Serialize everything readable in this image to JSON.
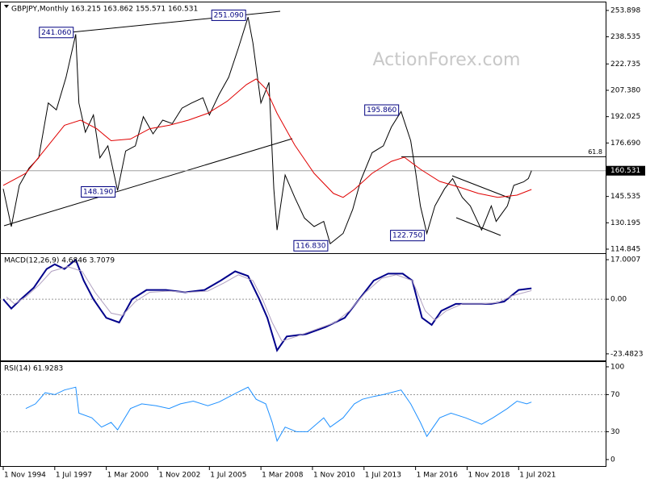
{
  "chart_data": [
    {
      "type": "line",
      "title": "GBPJPY,Monthly  163.215 163.862 155.571 160.531",
      "watermark": "ActionForex.com",
      "xlim": [
        "1994-09",
        "2026-01"
      ],
      "ylim": [
        112.5,
        258.1
      ],
      "yticks": [
        253.898,
        238.535,
        222.735,
        {
          "value": 207.38,
          "label": "207.380"
        },
        192.025,
        {
          "value": 176.69,
          "label": "176.690"
        },
        145.535,
        130.195,
        114.845
      ],
      "last_price": 160.531,
      "fib": {
        "label": "61.8",
        "value": 168.7
      },
      "annotations": [
        {
          "x": "1998-08",
          "value": 241.06,
          "label": "241.060"
        },
        {
          "x": "2007-07",
          "value": 251.09,
          "label": "251.090"
        },
        {
          "x": "2000-10",
          "value": 148.19,
          "label": "148.190"
        },
        {
          "x": "2011-10",
          "value": 116.83,
          "label": "116.830"
        },
        {
          "x": "2015-06",
          "value": 195.86,
          "label": "195.860"
        },
        {
          "x": "2016-10",
          "value": 122.75,
          "label": "122.750"
        }
      ],
      "series": [
        {
          "color": "#000000",
          "x": [
            "1994-11",
            "1995-04",
            "1995-09",
            "1996-03",
            "1996-09",
            "1997-03",
            "1997-08",
            "1998-02",
            "1998-08",
            "1998-10",
            "1999-02",
            "1999-07",
            "1999-11",
            "2000-04",
            "2000-10",
            "2001-03",
            "2001-09",
            "2002-02",
            "2002-08",
            "2003-02",
            "2003-08",
            "2004-02",
            "2004-08",
            "2005-03",
            "2005-07",
            "2006-01",
            "2006-07",
            "2007-01",
            "2007-07",
            "2007-10",
            "2008-03",
            "2008-08",
            "2008-11",
            "2009-01",
            "2009-06",
            "2009-12",
            "2010-06",
            "2010-12",
            "2011-06",
            "2011-10",
            "2012-06",
            "2012-12",
            "2013-05",
            "2013-12",
            "2014-07",
            "2014-12",
            "2015-06",
            "2015-12",
            "2016-03",
            "2016-06",
            "2016-10",
            "2017-03",
            "2017-09",
            "2018-02",
            "2018-08",
            "2019-01",
            "2019-08",
            "2020-02",
            "2020-05",
            "2020-12",
            "2021-04",
            "2021-10",
            "2022-01",
            "2022-03"
          ],
          "values": [
            150,
            128,
            152,
            162,
            168,
            200,
            196,
            215,
            240,
            200,
            183,
            193,
            168,
            175,
            149,
            172,
            175,
            192,
            182,
            190,
            188,
            197,
            200,
            203,
            193,
            205,
            215,
            232,
            250,
            235,
            200,
            212,
            150,
            126,
            158,
            145,
            133,
            128,
            131,
            118,
            124,
            138,
            155,
            171,
            175,
            186,
            195,
            178,
            160,
            140,
            124,
            140,
            150,
            156,
            145,
            140,
            126,
            140,
            131,
            140,
            152,
            154,
            156,
            160.531
          ]
        },
        {
          "color": "#e00000",
          "x": [
            "1994-11",
            "1996-01",
            "1997-01",
            "1998-01",
            "1998-11",
            "1999-09",
            "2000-06",
            "2001-06",
            "2002-06",
            "2003-06",
            "2004-06",
            "2005-06",
            "2006-06",
            "2007-06",
            "2007-12",
            "2008-06",
            "2009-01",
            "2009-12",
            "2010-12",
            "2011-12",
            "2012-06",
            "2013-01",
            "2013-12",
            "2014-12",
            "2015-08",
            "2016-06",
            "2017-06",
            "2018-06",
            "2019-06",
            "2020-06",
            "2021-06",
            "2022-03"
          ],
          "values": [
            152,
            159,
            173,
            187,
            190,
            185,
            178,
            179,
            185,
            187,
            190,
            194,
            201,
            210.7,
            214,
            208.3,
            194,
            175.5,
            159,
            147.3,
            145,
            149.6,
            159,
            166,
            168.4,
            161.4,
            154.3,
            151,
            147.3,
            145,
            146.3,
            149.6
          ]
        }
      ]
    },
    {
      "type": "line",
      "title": "MACD(12,26,9) 4.6846 3.7079",
      "xlim": [
        "1994-09",
        "2026-01"
      ],
      "ylim": [
        -26.3,
        19.1
      ],
      "yticks": [
        17.0007,
        {
          "value": 0,
          "label": "0.00"
        },
        -23.4823
      ],
      "levels": [
        0
      ],
      "series": [
        {
          "color": "#00008b",
          "x": [
            "1994-11",
            "1995-04",
            "1995-10",
            "1996-06",
            "1997-02",
            "1997-07",
            "1998-01",
            "1998-08",
            "1999-01",
            "1999-07",
            "2000-03",
            "2000-11",
            "2001-07",
            "2002-04",
            "2003-04",
            "2004-04",
            "2005-04",
            "2006-02",
            "2006-11",
            "2007-07",
            "2008-02",
            "2008-07",
            "2009-01",
            "2009-07",
            "2010-07",
            "2011-07",
            "2012-07",
            "2013-04",
            "2014-01",
            "2014-10",
            "2015-07",
            "2016-01",
            "2016-07",
            "2017-01",
            "2017-07",
            "2018-04",
            "2019-02",
            "2020-02",
            "2020-10",
            "2021-07",
            "2022-03"
          ],
          "values": [
            0,
            -4,
            0,
            5,
            13,
            15,
            13,
            17,
            8,
            0,
            -8,
            -10,
            0,
            4,
            4,
            3,
            4,
            8,
            12,
            10,
            0,
            -8,
            -22,
            -16,
            -15,
            -12,
            -8,
            0,
            8,
            11,
            11,
            8,
            -8,
            -11,
            -5,
            -2,
            -2,
            -2,
            -1,
            4,
            4.6846
          ]
        },
        {
          "color": "#b0a0c0",
          "x": [
            "1995-01",
            "1995-06",
            "1996-01",
            "1996-09",
            "1997-05",
            "1998-03",
            "1998-12",
            "1999-08",
            "2000-06",
            "2001-01",
            "2001-09",
            "2002-06",
            "2003-06",
            "2004-06",
            "2005-06",
            "2006-04",
            "2007-01",
            "2007-10",
            "2008-04",
            "2008-10",
            "2009-04",
            "2010-01",
            "2011-01",
            "2012-01",
            "2012-10",
            "2013-08",
            "2014-06",
            "2015-03",
            "2016-01",
            "2016-09",
            "2017-03",
            "2017-10",
            "2018-08",
            "2019-08",
            "2020-06",
            "2021-03",
            "2022-03"
          ],
          "values": [
            1,
            -2,
            1,
            6,
            12,
            14,
            12,
            3,
            -6,
            -7,
            -1,
            3,
            3.5,
            3,
            3.5,
            7,
            10.5,
            8,
            0,
            -10,
            -18,
            -16,
            -13,
            -10,
            -5,
            3,
            9,
            10.5,
            8,
            -5,
            -9,
            -5,
            -2,
            -2,
            -1.5,
            1.5,
            3.7079
          ]
        }
      ]
    },
    {
      "type": "line",
      "title": "RSI(14) 61.9283",
      "xlim": [
        "1994-09",
        "2026-01"
      ],
      "ylim": [
        -7,
        104.3
      ],
      "yticks": [
        100,
        70,
        30,
        0
      ],
      "levels": [
        70,
        30
      ],
      "xticks": [
        {
          "value": "1994-11",
          "label": "1 Nov 1994"
        },
        {
          "value": "1997-07",
          "label": "1 Jul 1997"
        },
        {
          "value": "2000-03",
          "label": "1 Mar 2000"
        },
        {
          "value": "2002-11",
          "label": "1 Nov 2002"
        },
        {
          "value": "2005-07",
          "label": "1 Jul 2005"
        },
        {
          "value": "2008-03",
          "label": "1 Mar 2008"
        },
        {
          "value": "2010-11",
          "label": "1 Nov 2010"
        },
        {
          "value": "2013-07",
          "label": "1 Jul 2013"
        },
        {
          "value": "2016-03",
          "label": "1 Mar 2016"
        },
        {
          "value": "2018-11",
          "label": "1 Nov 2018"
        },
        {
          "value": "2021-07",
          "label": "1 Jul 2021"
        }
      ],
      "series": [
        {
          "color": "#1e90ff",
          "x": [
            "1996-01",
            "1996-07",
            "1997-01",
            "1997-07",
            "1998-01",
            "1998-08",
            "1998-10",
            "1999-06",
            "1999-12",
            "2000-06",
            "2000-10",
            "2001-06",
            "2002-01",
            "2002-10",
            "2003-06",
            "2004-01",
            "2004-09",
            "2005-06",
            "2006-01",
            "2006-12",
            "2007-07",
            "2007-12",
            "2008-06",
            "2008-10",
            "2009-01",
            "2009-06",
            "2010-01",
            "2010-08",
            "2011-06",
            "2011-10",
            "2012-06",
            "2013-01",
            "2013-06",
            "2014-01",
            "2014-07",
            "2015-06",
            "2015-12",
            "2016-06",
            "2016-10",
            "2017-06",
            "2018-01",
            "2018-10",
            "2019-08",
            "2020-03",
            "2020-12",
            "2021-06",
            "2021-12",
            "2022-03"
          ],
          "values": [
            55,
            60,
            72,
            70,
            75,
            78,
            50,
            45,
            35,
            40,
            32,
            55,
            60,
            58,
            55,
            60,
            63,
            58,
            62,
            72,
            78,
            65,
            60,
            40,
            20,
            35,
            30,
            30,
            45,
            35,
            45,
            60,
            65,
            68,
            70,
            75,
            60,
            40,
            25,
            45,
            50,
            45,
            38,
            45,
            55,
            63,
            60,
            61.9283
          ]
        }
      ]
    }
  ]
}
